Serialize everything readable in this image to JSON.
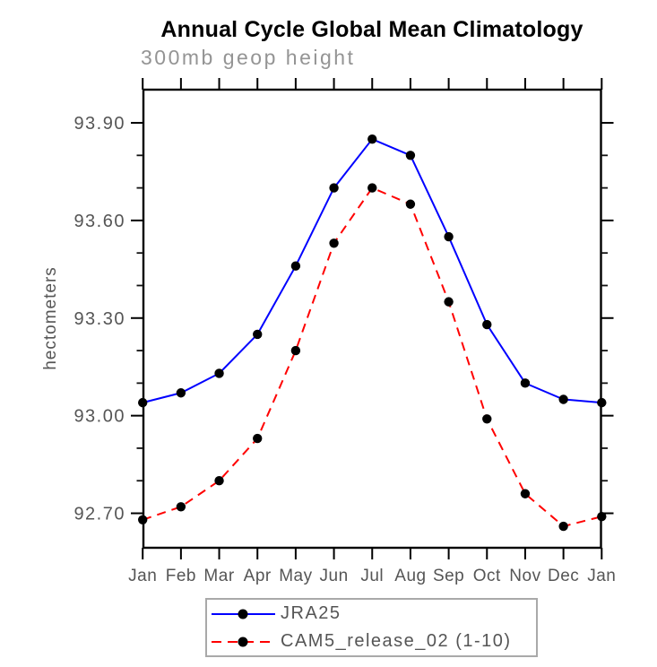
{
  "chart_data": {
    "type": "line",
    "title": "Annual Cycle Global Mean Climatology",
    "subtitle": "300mb geop height",
    "ylabel": "hectometers",
    "xlabel": "",
    "categories": [
      "Jan",
      "Feb",
      "Mar",
      "Apr",
      "May",
      "Jun",
      "Jul",
      "Aug",
      "Sep",
      "Oct",
      "Nov",
      "Dec",
      "Jan"
    ],
    "series": [
      {
        "name": "JRA25",
        "color": "#0000ff",
        "line_style": "solid",
        "marker": "filled-black-circle",
        "values": [
          93.04,
          93.07,
          93.13,
          93.25,
          93.46,
          93.7,
          93.85,
          93.8,
          93.55,
          93.28,
          93.1,
          93.05,
          93.04
        ]
      },
      {
        "name": "CAM5_release_02 (1-10)",
        "color": "#ff0000",
        "line_style": "dashed",
        "marker": "filled-black-circle",
        "values": [
          92.68,
          92.72,
          92.8,
          92.93,
          93.2,
          93.53,
          93.7,
          93.65,
          93.35,
          92.99,
          92.76,
          92.66,
          92.69
        ]
      }
    ],
    "y_axis": {
      "min": 92.594,
      "max": 94.002,
      "major_ticks": [
        {
          "value": 93.9,
          "label": "93.90"
        },
        {
          "value": 93.6,
          "label": "93.60"
        },
        {
          "value": 93.3,
          "label": "93.30"
        },
        {
          "value": 93.0,
          "label": "93.00"
        },
        {
          "value": 92.7,
          "label": "92.70"
        }
      ],
      "minor_tick_values": [
        93.8,
        93.7,
        93.5,
        93.4,
        93.2,
        93.1,
        92.9,
        92.8
      ]
    },
    "grid": false,
    "legend_position": "bottom"
  },
  "colors": {
    "series_1": "#0000ff",
    "series_2": "#ff0000",
    "marker": "#000000",
    "axis": "#000000",
    "tick_label": "#555555",
    "subtitle": "#949494",
    "legend_border": "#a9a9a9"
  }
}
